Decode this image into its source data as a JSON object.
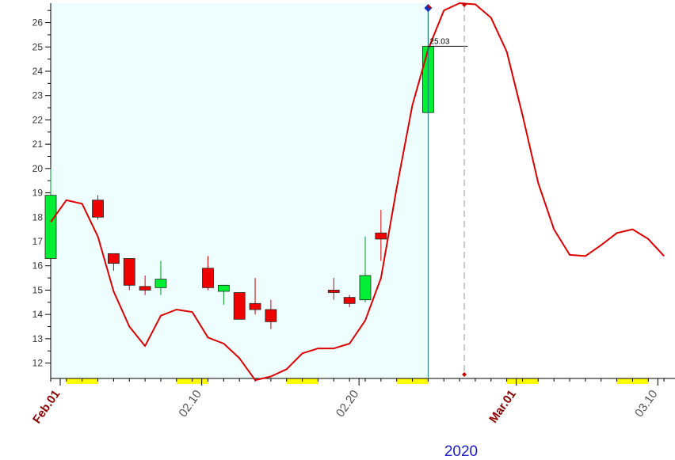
{
  "chart_data": {
    "type": "candlestick",
    "title": "",
    "xlabel": "2020",
    "ylim": [
      11.4,
      26.8
    ],
    "y_ticks": [
      12,
      13,
      14,
      15,
      16,
      17,
      18,
      19,
      20,
      21,
      22,
      23,
      24,
      25,
      26
    ],
    "x_ticks": [
      {
        "label": "Feb.01",
        "x": 0,
        "style": "month"
      },
      {
        "label": "02.10",
        "x": 9,
        "style": "day"
      },
      {
        "label": "02.20",
        "x": 19,
        "style": "day"
      },
      {
        "label": "Mar.01",
        "x": 29,
        "style": "month"
      },
      {
        "label": "03.10",
        "x": 38,
        "style": "day"
      }
    ],
    "candles": [
      {
        "x": 0,
        "open": 16.3,
        "high": 20.0,
        "low": 16.3,
        "close": 18.9
      },
      {
        "x": 3,
        "open": 18.7,
        "high": 18.9,
        "low": 17.9,
        "close": 18.0
      },
      {
        "x": 4,
        "open": 16.5,
        "high": 16.5,
        "low": 15.8,
        "close": 16.1
      },
      {
        "x": 5,
        "open": 16.3,
        "high": 16.3,
        "low": 15.0,
        "close": 15.2
      },
      {
        "x": 6,
        "open": 15.15,
        "high": 15.6,
        "low": 14.8,
        "close": 15.0
      },
      {
        "x": 7,
        "open": 15.1,
        "high": 16.2,
        "low": 14.8,
        "close": 15.45
      },
      {
        "x": 10,
        "open": 15.9,
        "high": 16.4,
        "low": 15.0,
        "close": 15.1
      },
      {
        "x": 11,
        "open": 14.95,
        "high": 15.2,
        "low": 14.4,
        "close": 15.2
      },
      {
        "x": 12,
        "open": 14.9,
        "high": 14.9,
        "low": 13.8,
        "close": 13.8
      },
      {
        "x": 13,
        "open": 14.45,
        "high": 15.5,
        "low": 14.0,
        "close": 14.2
      },
      {
        "x": 14,
        "open": 14.2,
        "high": 14.6,
        "low": 13.4,
        "close": 13.7
      },
      {
        "x": 18,
        "open": 15.0,
        "high": 15.5,
        "low": 14.6,
        "close": 14.9
      },
      {
        "x": 19,
        "open": 14.7,
        "high": 14.8,
        "low": 14.3,
        "close": 14.45
      },
      {
        "x": 20,
        "open": 14.6,
        "high": 17.2,
        "low": 14.5,
        "close": 15.6
      },
      {
        "x": 21,
        "open": 17.35,
        "high": 18.3,
        "low": 16.2,
        "close": 17.1
      },
      {
        "x": 24,
        "open": 22.3,
        "high": 26.6,
        "low": 22.3,
        "close": 25.03
      }
    ],
    "series": [
      {
        "type": "line",
        "color": "#dd0000",
        "x": [
          0,
          1,
          2,
          3,
          4,
          5,
          6,
          7,
          8,
          9,
          10,
          11,
          12,
          13,
          14,
          15,
          16,
          17,
          18,
          19,
          20,
          21,
          22,
          23,
          24,
          25,
          26,
          27,
          28,
          29,
          30,
          31,
          32,
          33,
          34,
          35,
          36,
          37,
          38,
          39
        ],
        "y": [
          17.8,
          18.7,
          18.55,
          17.2,
          14.95,
          13.5,
          12.7,
          13.95,
          14.2,
          14.1,
          13.05,
          12.8,
          12.2,
          11.3,
          11.45,
          11.75,
          12.4,
          12.6,
          12.6,
          12.8,
          13.75,
          15.5,
          19.2,
          22.6,
          24.9,
          26.5,
          26.8,
          26.75,
          26.2,
          24.8,
          22.2,
          19.4,
          17.5,
          16.45,
          16.4,
          16.85,
          17.35,
          17.5,
          17.1,
          16.4
        ]
      }
    ],
    "last_price_label": "25.03",
    "last_price": 25.03,
    "marker_top_value": 26.6,
    "highlight_end_x": 24,
    "dashed_line_x": 26.3,
    "colors": {
      "up": "#00ee33",
      "down": "#ee0000",
      "line": "#dd0000",
      "shaded_bg": "#eefefe",
      "month_label": "#8b0000",
      "day_label": "#555555",
      "year_label": "#1a1acc",
      "x_band": "#ffff00"
    },
    "x_bands": [
      [
        1,
        3
      ],
      [
        8,
        10
      ],
      [
        15,
        17
      ],
      [
        22,
        24
      ],
      [
        29,
        31
      ],
      [
        36,
        38
      ]
    ]
  }
}
